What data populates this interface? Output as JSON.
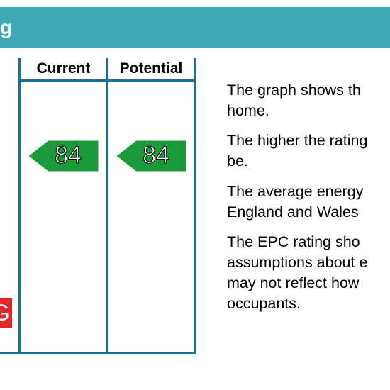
{
  "header": {
    "title": "g"
  },
  "table": {
    "columns": [
      "Current",
      "Potential"
    ],
    "current": 84,
    "potential": 84,
    "band": "G"
  },
  "text": {
    "paragraphs": [
      [
        "The graph shows th",
        "home."
      ],
      [
        "The higher the rating",
        "be."
      ],
      [
        "The average energy",
        "England and Wales"
      ],
      [
        "The EPC rating sho",
        "assumptions about e",
        "may not reflect how",
        "occupants."
      ]
    ]
  }
}
